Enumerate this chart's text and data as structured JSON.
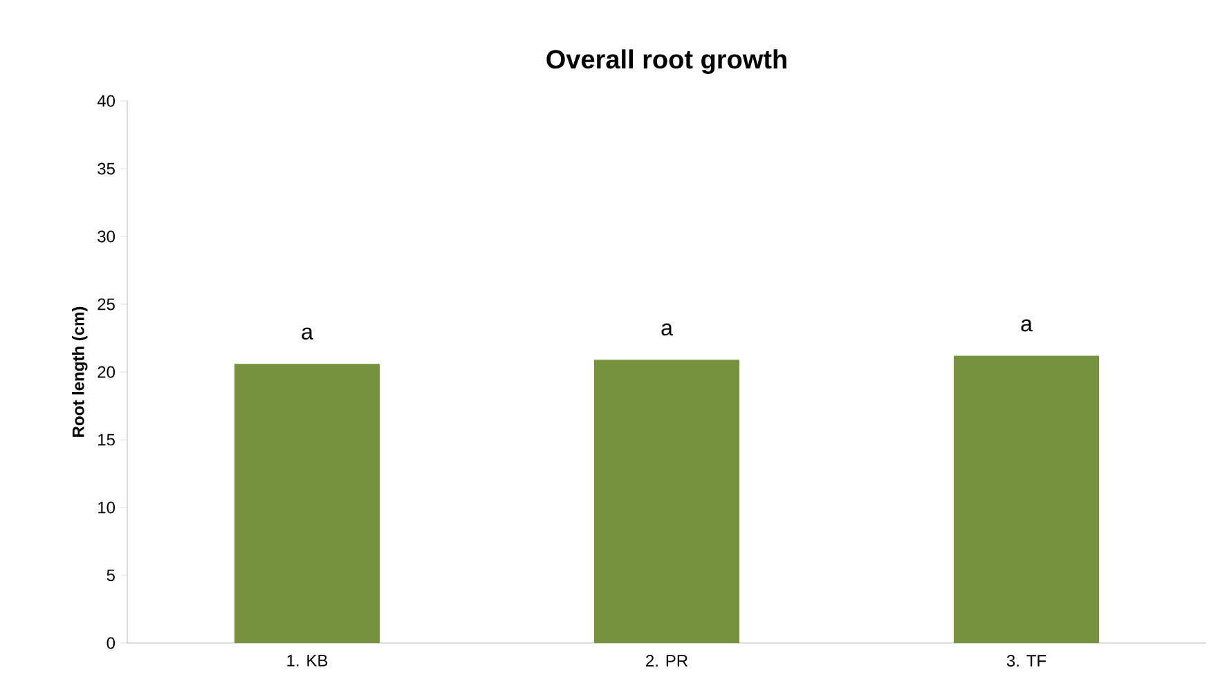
{
  "chart_data": {
    "type": "bar",
    "title": "Overall root growth",
    "ylabel": "Root length (cm)",
    "categories": [
      "1. KB",
      "2. PR",
      "3. TF"
    ],
    "values": [
      20.6,
      20.9,
      21.2
    ],
    "color": "#76923c",
    "ylim": [
      0,
      40
    ],
    "yticks": [
      0,
      5,
      10,
      15,
      20,
      25,
      30,
      35,
      40
    ],
    "grid": false,
    "annotations": [
      "a",
      "a",
      "a"
    ]
  }
}
